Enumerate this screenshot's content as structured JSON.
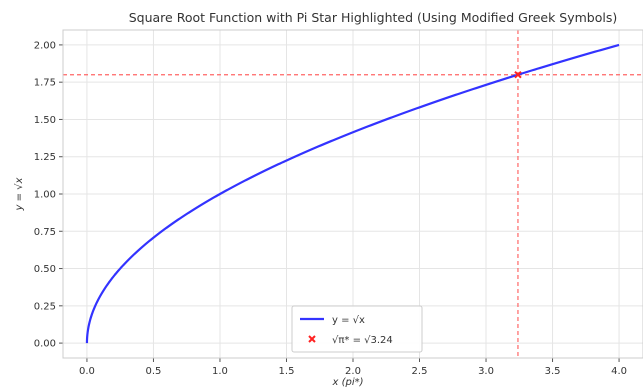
{
  "chart_data": {
    "type": "line",
    "title": "Square Root Function with Pi Star Highlighted (Using Modified Greek Symbols)",
    "xlabel": "x (pi*)",
    "ylabel": "y = √x",
    "xlim": [
      -0.18,
      4.18
    ],
    "ylim": [
      -0.1,
      2.1
    ],
    "x_ticks": [
      0.0,
      0.5,
      1.0,
      1.5,
      2.0,
      2.5,
      3.0,
      3.5,
      4.0
    ],
    "x_tick_labels": [
      "0.0",
      "0.5",
      "1.0",
      "1.5",
      "2.0",
      "2.5",
      "3.0",
      "3.5",
      "4.0"
    ],
    "y_ticks": [
      0.0,
      0.25,
      0.5,
      0.75,
      1.0,
      1.25,
      1.5,
      1.75,
      2.0
    ],
    "y_tick_labels": [
      "0.00",
      "0.25",
      "0.50",
      "0.75",
      "1.00",
      "1.25",
      "1.50",
      "1.75",
      "2.00"
    ],
    "grid": true,
    "legend_position": "bottom-center",
    "series": [
      {
        "name": "y = √x",
        "kind": "line",
        "color": "#3333ff",
        "function": "sqrt",
        "x_range": [
          0,
          4
        ]
      },
      {
        "name": "√π* = √3.24",
        "kind": "scatter",
        "color": "#ff2222",
        "marker": "x",
        "points": [
          {
            "x": 3.24,
            "y": 1.8
          }
        ]
      }
    ],
    "reference_lines": [
      {
        "orientation": "vertical",
        "value": 3.24,
        "color": "#ff6666",
        "style": "dashed"
      },
      {
        "orientation": "horizontal",
        "value": 1.8,
        "color": "#ff6666",
        "style": "dashed"
      }
    ]
  }
}
